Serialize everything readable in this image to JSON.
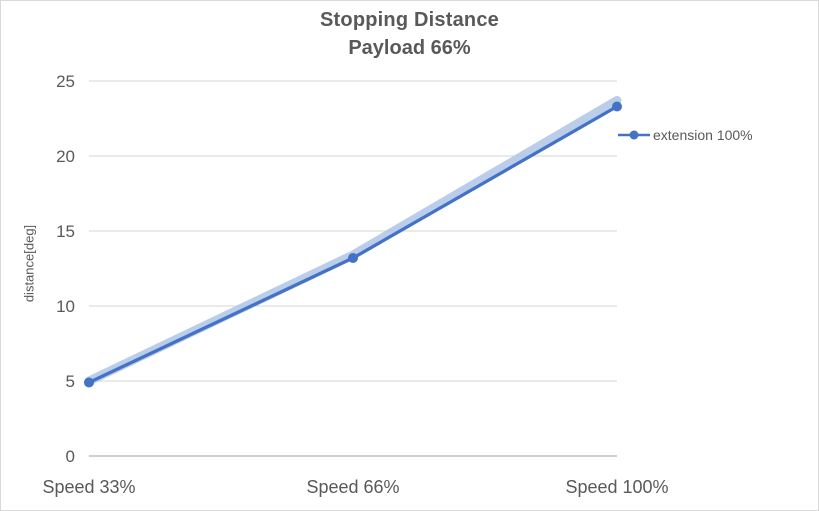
{
  "chart_data": {
    "type": "line",
    "title": "Stopping Distance",
    "subtitle": "Payload 66%",
    "xlabel": "",
    "ylabel": "distance[deg]",
    "categories": [
      "Speed 33%",
      "Speed 66%",
      "Speed 100%"
    ],
    "series": [
      {
        "name": "extension 100%",
        "values": [
          4.9,
          13.2,
          23.3
        ],
        "color": "#4472C4"
      }
    ],
    "band": {
      "values": [
        5.0,
        13.4,
        23.7
      ],
      "color": "#AEC6E8"
    },
    "ylim": [
      0,
      25
    ],
    "yticks": [
      0,
      5,
      10,
      15,
      20,
      25
    ],
    "grid": true,
    "legend_position": "right",
    "colors": {
      "grid": "#d6d6d6",
      "axis": "#bfbfbf",
      "text": "#595959"
    }
  }
}
